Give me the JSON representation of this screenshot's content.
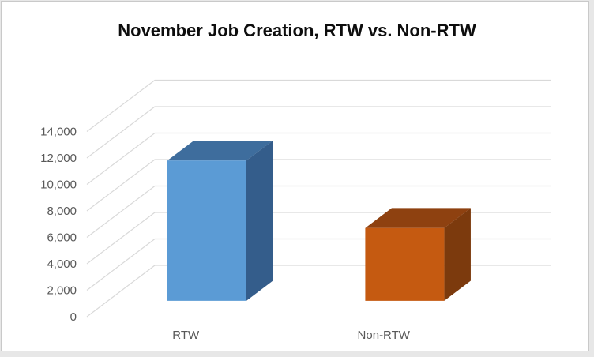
{
  "window": {
    "background": "#e7e7e7",
    "chart_background": "#ffffff",
    "chart_border": "#c9c9c9"
  },
  "chart_data": {
    "type": "bar",
    "style": "3d-column",
    "title": "November Job Creation, RTW vs. Non-RTW",
    "categories": [
      "RTW",
      "Non-RTW"
    ],
    "values": [
      10600,
      5500
    ],
    "xlabel": "",
    "ylabel": "",
    "ylim": [
      0,
      14000
    ],
    "ytick_interval": 2000,
    "yticks": [
      {
        "value": 0,
        "label": "0"
      },
      {
        "value": 2000,
        "label": "2,000"
      },
      {
        "value": 4000,
        "label": "4,000"
      },
      {
        "value": 6000,
        "label": "6,000"
      },
      {
        "value": 8000,
        "label": "8,000"
      },
      {
        "value": 10000,
        "label": "10,000"
      },
      {
        "value": 12000,
        "label": "12,000"
      },
      {
        "value": 14000,
        "label": "14,000"
      }
    ],
    "legend": false,
    "grid": true,
    "colors": {
      "gridline": "#d9d9d9",
      "axis_text": "#595959",
      "title_text": "#0d0d0d",
      "bars": [
        {
          "front": "#5b9bd5",
          "top": "#3e6d9d",
          "side": "#345d8b"
        },
        {
          "front": "#c55a11",
          "top": "#8e4110",
          "side": "#7c3a0d"
        }
      ]
    }
  }
}
